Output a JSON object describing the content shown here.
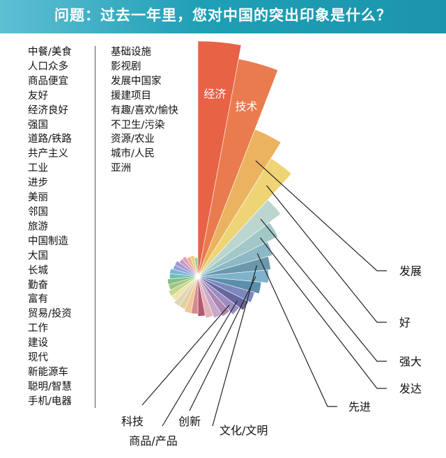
{
  "title": "问题：过去一年里，您对中国的突出印象是什么？",
  "legend_col1": [
    "中餐/美食",
    "人口众多",
    "商品便宜",
    "友好",
    "经济良好",
    "强国",
    "道路/铁路",
    "共产主义",
    "工业",
    "进步",
    "美丽",
    "邻国",
    "旅游",
    "中国制造",
    "大国",
    "长城",
    "勤奋",
    "富有",
    "贸易/投资",
    "工作",
    "建设",
    "现代",
    "新能源车",
    "聪明/智慧",
    "手机/电器"
  ],
  "legend_col2": [
    "基础设施",
    "影视剧",
    "发展中国家",
    "援建项目",
    "有趣/喜欢/愉快",
    "不卫生/污染",
    "资源/农业",
    "城市/人民",
    "亚洲"
  ],
  "chart_data": {
    "type": "rose",
    "title": "问题：过去一年里，您对中国的突出印象是什么？",
    "slices": [
      {
        "label": "经济",
        "value": 100,
        "color": "#e86246"
      },
      {
        "label": "技术",
        "value": 94,
        "color": "#ea7b4f"
      },
      {
        "label": "发展",
        "value": 67,
        "color": "#ebb360"
      },
      {
        "label": "好",
        "value": 59,
        "color": "#efd475"
      },
      {
        "label": "强大",
        "value": 44,
        "color": "#bcd6cf"
      },
      {
        "label": "发达",
        "value": 38,
        "color": "#a1c8c6"
      },
      {
        "label": "先进",
        "value": 33,
        "color": "#8cb8c7"
      },
      {
        "label": "文化/文明",
        "value": 31,
        "color": "#6a98ac"
      },
      {
        "label": "创新",
        "value": 30,
        "color": "#7fb2cb"
      },
      {
        "label": "",
        "value": 27,
        "color": "#5b8fab"
      },
      {
        "label": "",
        "value": 25,
        "color": "#7d87bf"
      },
      {
        "label": "商品/产品",
        "value": 24,
        "color": "#67679e"
      },
      {
        "label": "科技",
        "value": 22,
        "color": "#9c8cc2"
      },
      {
        "label": "",
        "value": 20,
        "color": "#ac87b3"
      },
      {
        "label": "",
        "value": 19,
        "color": "#c7a8c9"
      },
      {
        "label": "",
        "value": 18,
        "color": "#e5b2b8"
      },
      {
        "label": "",
        "value": 17,
        "color": "#b35872"
      },
      {
        "label": "",
        "value": 16,
        "color": "#d68a8a"
      },
      {
        "label": "",
        "value": 16,
        "color": "#f0c59a"
      },
      {
        "label": "",
        "value": 15,
        "color": "#e3cfa0"
      },
      {
        "label": "",
        "value": 15,
        "color": "#dcd7b5"
      },
      {
        "label": "",
        "value": 14,
        "color": "#f0e4a8"
      },
      {
        "label": "",
        "value": 14,
        "color": "#c4d88e"
      },
      {
        "label": "",
        "value": 13,
        "color": "#a2c482"
      },
      {
        "label": "",
        "value": 13,
        "color": "#7fbf8c"
      },
      {
        "label": "",
        "value": 12,
        "color": "#6fc1a8"
      },
      {
        "label": "",
        "value": 12,
        "color": "#78b6d6"
      },
      {
        "label": "",
        "value": 11,
        "color": "#8fa3d8"
      },
      {
        "label": "",
        "value": 11,
        "color": "#a696cf"
      },
      {
        "label": "",
        "value": 10,
        "color": "#c39ac9"
      },
      {
        "label": "",
        "value": 10,
        "color": "#e69fb4"
      },
      {
        "label": "",
        "value": 9,
        "color": "#f2b28e"
      },
      {
        "label": "",
        "value": 9,
        "color": "#e9cf7c"
      },
      {
        "label": "",
        "value": 8,
        "color": "#9ccf9a"
      }
    ]
  }
}
